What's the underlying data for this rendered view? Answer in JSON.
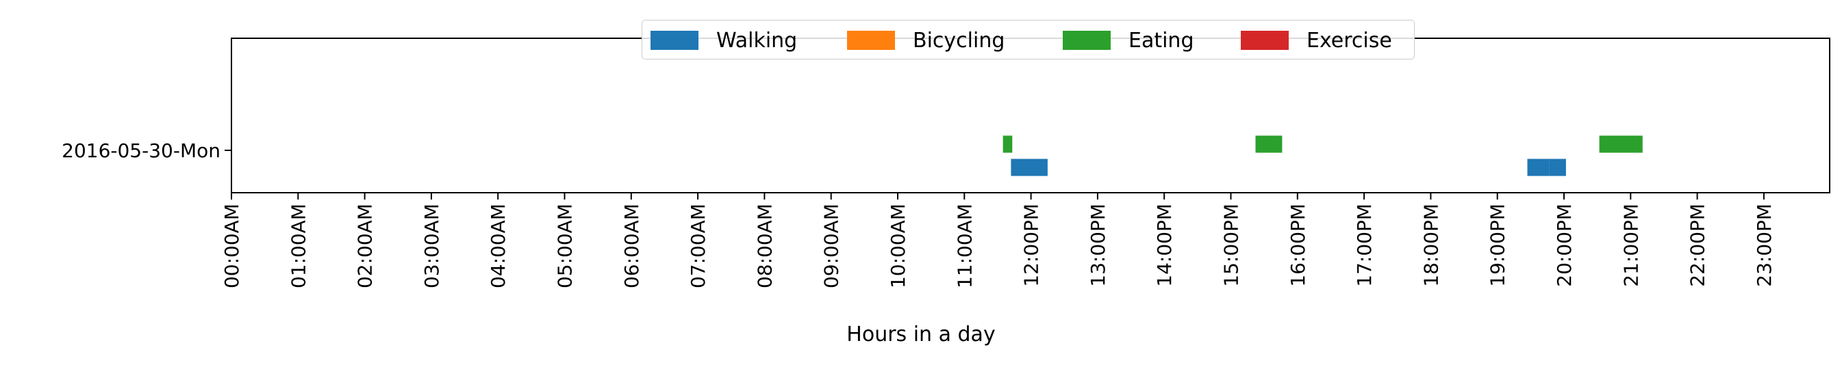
{
  "chart_data": {
    "type": "bar",
    "orientation": "horizontal-timeline",
    "title": "",
    "xlabel": "Hours in a day",
    "ylabel": "",
    "xlim": [
      0,
      24
    ],
    "x_tick_labels": [
      "00:00AM",
      "01:00AM",
      "02:00AM",
      "03:00AM",
      "04:00AM",
      "05:00AM",
      "06:00AM",
      "07:00AM",
      "08:00AM",
      "09:00AM",
      "10:00AM",
      "11:00AM",
      "12:00PM",
      "13:00PM",
      "14:00PM",
      "15:00PM",
      "16:00PM",
      "17:00PM",
      "18:00PM",
      "19:00PM",
      "20:00PM",
      "21:00PM",
      "22:00PM",
      "23:00PM"
    ],
    "categories": [
      "2016-05-30-Mon"
    ],
    "legend_position": "top-center",
    "grid": false,
    "series": [
      {
        "name": "Walking",
        "color": "#1f77b4",
        "intervals": [
          {
            "day": "2016-05-30-Mon",
            "start": 11.7,
            "end": 12.25
          },
          {
            "day": "2016-05-30-Mon",
            "start": 19.45,
            "end": 19.78
          },
          {
            "day": "2016-05-30-Mon",
            "start": 19.78,
            "end": 20.03
          }
        ]
      },
      {
        "name": "Bicycling",
        "color": "#ff7f0e",
        "intervals": []
      },
      {
        "name": "Eating",
        "color": "#2ca02c",
        "intervals": [
          {
            "day": "2016-05-30-Mon",
            "start": 11.58,
            "end": 11.72
          },
          {
            "day": "2016-05-30-Mon",
            "start": 15.37,
            "end": 15.77
          },
          {
            "day": "2016-05-30-Mon",
            "start": 20.53,
            "end": 21.18
          }
        ]
      },
      {
        "name": "Exercise",
        "color": "#d62728",
        "intervals": []
      }
    ]
  }
}
